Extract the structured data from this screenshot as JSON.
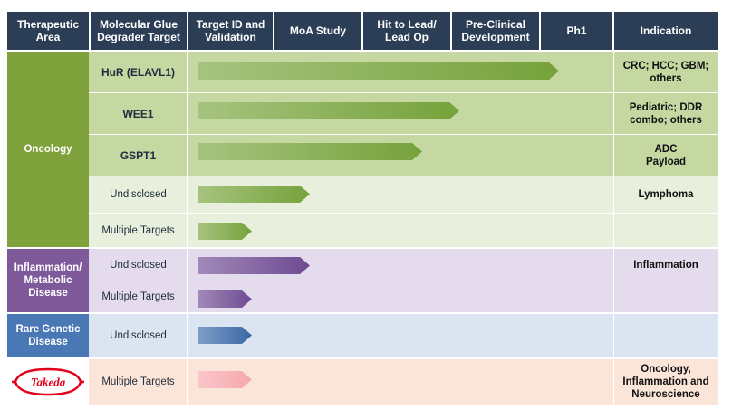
{
  "headers": {
    "area": "Therapeutic\nArea",
    "target": "Molecular Glue\nDegrader Target",
    "target_id": "Target ID and\nValidation",
    "moa": "MoA Study",
    "hit_to_lead": "Hit to Lead/\nLead Op",
    "preclinical": "Pre-Clinical\nDevelopment",
    "ph1": "Ph1",
    "indication": "Indication"
  },
  "areas": {
    "oncology": "Oncology",
    "inflammation": "Inflammation/\nMetabolic\nDisease",
    "rare": "Rare Genetic\nDisease",
    "partner_logo": "Takeda"
  },
  "rows": [
    {
      "target": "HuR (ELAVL1)",
      "indication": "CRC; HCC; GBM;\nothers",
      "progress": 0.87
    },
    {
      "target": "WEE1",
      "indication": "Pediatric; DDR\ncombo; others",
      "progress": 0.63
    },
    {
      "target": "GSPT1",
      "indication": "ADC\nPayload",
      "progress": 0.54
    },
    {
      "target": "Undisclosed",
      "indication": "Lymphoma",
      "progress": 0.27
    },
    {
      "target": "Multiple Targets",
      "indication": "",
      "progress": 0.13
    },
    {
      "target": "Undisclosed",
      "indication": "Inflammation",
      "progress": 0.27
    },
    {
      "target": "Multiple Targets",
      "indication": "",
      "progress": 0.13
    },
    {
      "target": "Undisclosed",
      "indication": "",
      "progress": 0.13
    },
    {
      "target": "Multiple Targets",
      "indication": "Oncology,\nInflammation and\nNeuroscience",
      "progress": 0.13
    }
  ],
  "colors": {
    "header_bg": "#2c3e55",
    "oncology_area": "#7ea13c",
    "oncology_dark_row": "#c5d8a2",
    "oncology_light_row": "#e8f0dd",
    "oncology_bar": "#76a23a",
    "inflammation_area": "#7e5a9b",
    "inflammation_row": "#e4dcec",
    "inflammation_bar": "#6e4a92",
    "rare_area": "#4a78b5",
    "rare_row": "#dbe4f1",
    "rare_bar": "#3a68a5",
    "takeda_row": "#fbe4d8",
    "takeda_bar": "#f5a8ad",
    "takeda_red": "#e0001a"
  }
}
